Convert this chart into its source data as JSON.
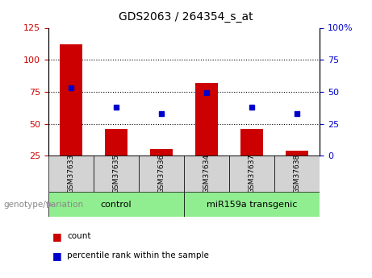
{
  "title": "GDS2063 / 264354_s_at",
  "samples": [
    "GSM37633",
    "GSM37635",
    "GSM37636",
    "GSM37634",
    "GSM37637",
    "GSM37638"
  ],
  "counts": [
    112,
    46,
    30,
    82,
    46,
    29
  ],
  "percentile_ranks_left": [
    78,
    63,
    58,
    74,
    63,
    58
  ],
  "groups": [
    {
      "label": "control",
      "color": "#90EE90"
    },
    {
      "label": "miR159a transgenic",
      "color": "#90EE90"
    }
  ],
  "bar_color": "#CC0000",
  "dot_color": "#0000CC",
  "left_ylim": [
    25,
    125
  ],
  "right_ylim": [
    0,
    100
  ],
  "left_yticks": [
    25,
    50,
    75,
    100,
    125
  ],
  "right_yticks": [
    0,
    25,
    50,
    75,
    100
  ],
  "right_yticklabels": [
    "0",
    "25",
    "50",
    "75",
    "100%"
  ],
  "hlines": [
    50,
    75,
    100
  ],
  "group_label": "genotype/variation",
  "legend_count_label": "count",
  "legend_pct_label": "percentile rank within the sample",
  "tick_color_left": "#CC0000",
  "tick_color_right": "#0000CC",
  "label_bg_color": "#d3d3d3"
}
